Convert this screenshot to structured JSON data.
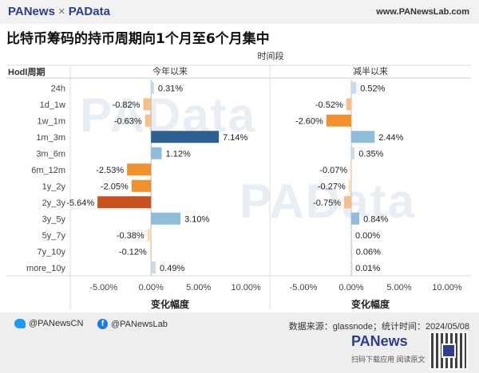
{
  "header": {
    "brand_left": "PANews",
    "brand_sep": "×",
    "brand_right": "PAData",
    "site": "www.PANewsLab.com"
  },
  "title": "比特币筹码的持币周期向1个月至6个月集中",
  "footer": {
    "twitter": "@PANewsCN",
    "facebook": "@PANewsLab",
    "source": "数据来源：glassnode；统计时间：2024/05/08",
    "logo": "PANews",
    "slogan": "扫码下载应用  阅读原文"
  },
  "watermark": "PAData",
  "colors": {
    "dark_blue": "#2d5f8f",
    "light_blue": "#8fbcd9",
    "pale_blue": "#c8dce9",
    "orange_red": "#c4531f",
    "orange": "#f0912d",
    "light_orange": "#f4c08a",
    "pale_orange": "#f8dcb8"
  },
  "chart_data": {
    "type": "bar",
    "orientation": "horizontal",
    "title": "",
    "column_header": "时间段",
    "row_header": "Hodl周期",
    "xlabel": "变化幅度",
    "categories": [
      "24h",
      "1d_1w",
      "1w_1m",
      "1m_3m",
      "3m_6m",
      "6m_12m",
      "1y_2y",
      "2y_3y",
      "3y_5y",
      "5y_7y",
      "7y_10y",
      "more_10y"
    ],
    "xlim": [
      -7.5,
      11.5
    ],
    "ticks": [
      -5,
      0,
      5,
      10
    ],
    "tick_labels": [
      "-5.00%",
      "0.00%",
      "5.00%",
      "10.00%"
    ],
    "series": [
      {
        "name": "今年以来",
        "values": [
          0.31,
          -0.82,
          -0.63,
          7.14,
          1.12,
          -2.53,
          -2.05,
          -5.64,
          3.1,
          -0.38,
          -0.12,
          0.49
        ],
        "labels": [
          "0.31%",
          "-0.82%",
          "-0.63%",
          "7.14%",
          "1.12%",
          "-2.53%",
          "-2.05%",
          "-5.64%",
          "3.10%",
          "-0.38%",
          "-0.12%",
          "0.49%"
        ]
      },
      {
        "name": "减半以来",
        "values": [
          0.52,
          -0.52,
          -2.6,
          2.44,
          0.35,
          -0.07,
          -0.27,
          -0.75,
          0.84,
          0.0,
          0.06,
          0.01
        ],
        "labels": [
          "0.52%",
          "-0.52%",
          "-2.60%",
          "2.44%",
          "0.35%",
          "-0.07%",
          "-0.27%",
          "-0.75%",
          "0.84%",
          "0.00%",
          "0.06%",
          "0.01%"
        ]
      }
    ]
  }
}
